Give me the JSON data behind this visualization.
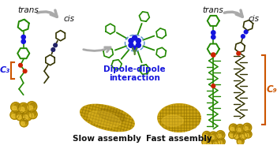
{
  "background_color": "#ffffff",
  "trans_label": "trans",
  "cis_label": "cis",
  "dipole_label": "Dipole-dipole\ninteraction",
  "slow_label": "Slow assembly",
  "fast_label": "Fast assembly",
  "c3_label": "C₃",
  "c9_label": "C₉",
  "arrow_color": "#aaaaaa",
  "text_color_dark": "#1a1a1a",
  "green": "#228800",
  "blue_node": "#1515dd",
  "red_node": "#cc2200",
  "orange_bracket": "#cc5500",
  "gold_hi": "#e8c030",
  "gold_mid": "#c8a010",
  "gold_dark": "#907000",
  "gold_shadow": "#705000",
  "figsize": [
    3.51,
    1.89
  ],
  "dpi": 100
}
